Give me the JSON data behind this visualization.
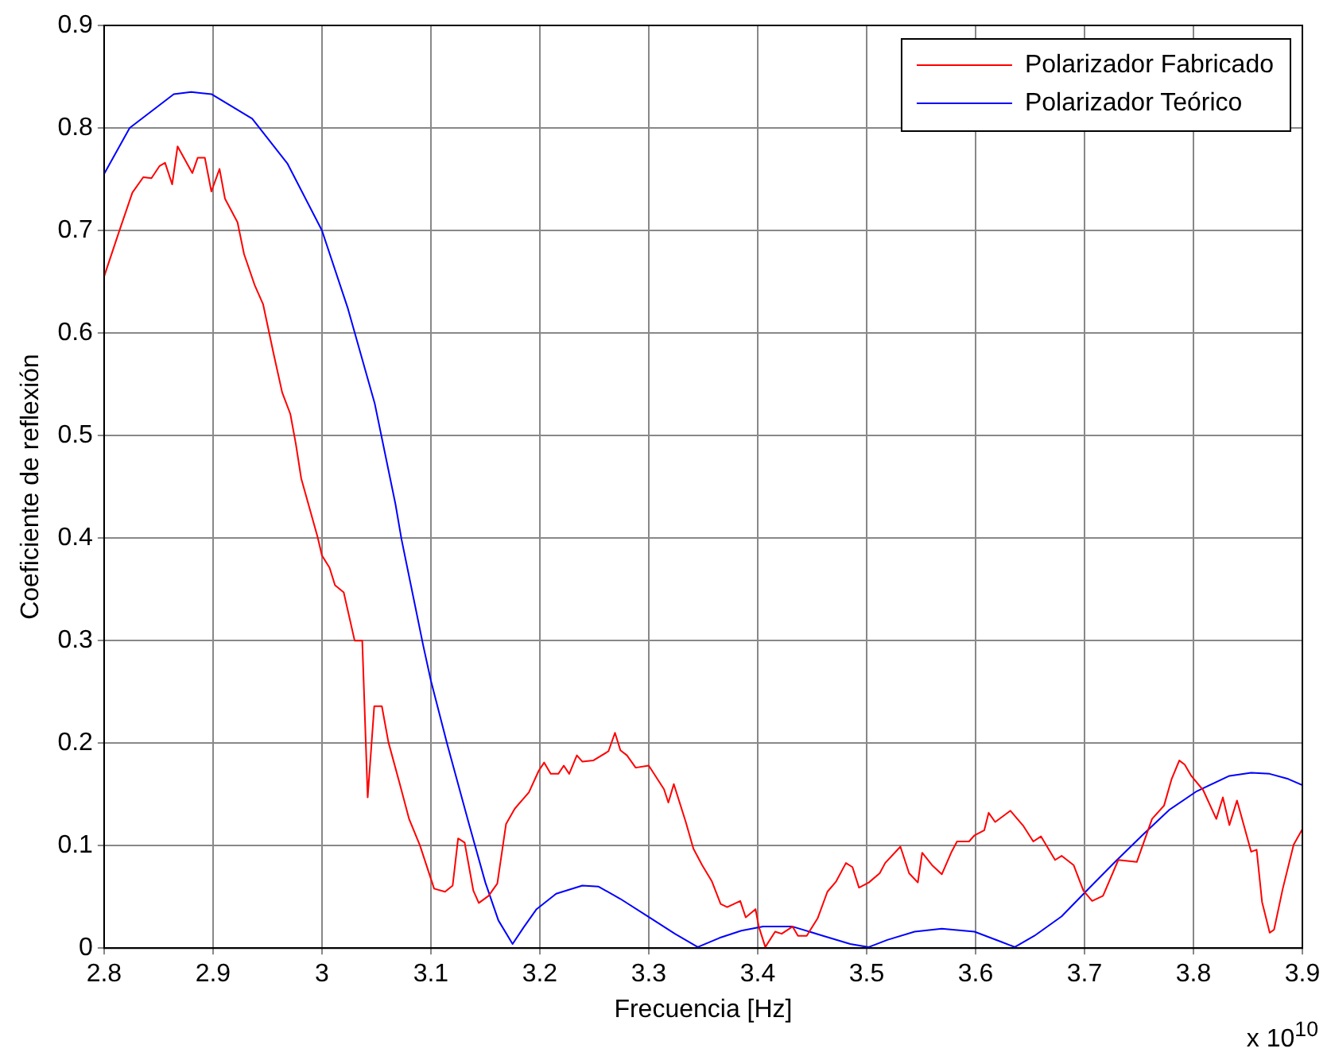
{
  "chart_data": {
    "type": "line",
    "xlabel": "Frecuencia [Hz]",
    "ylabel": "Coeficiente de reflexión",
    "annotations": [
      "x 10$^{10}$"
    ],
    "xlim": [
      2.8,
      3.9
    ],
    "xticks": [
      2.8,
      2.9,
      3,
      3.1,
      3.2,
      3.3,
      3.4,
      3.5,
      3.6,
      3.7,
      3.8,
      3.9
    ],
    "ylim": [
      0,
      0.9
    ],
    "yticks": [
      0,
      0.1,
      0.2,
      0.3,
      0.4,
      0.5,
      0.6,
      0.7,
      0.8,
      0.9
    ],
    "grid": true,
    "legend": "top right",
    "marker": "none",
    "line_style": "solid",
    "series": [
      {
        "name": "Polarizador Fabricado",
        "color": "#ff0000",
        "x": [
          2.8,
          2.8135,
          2.826,
          2.836,
          2.8435,
          2.851,
          2.856,
          2.8625,
          2.8675,
          2.881,
          2.886,
          2.8925,
          2.8985,
          2.906,
          2.911,
          2.9225,
          2.9285,
          2.9385,
          2.946,
          2.956,
          2.9635,
          2.971,
          2.976,
          2.981,
          2.996,
          3.0,
          3.007,
          3.012,
          3.02,
          3.03,
          3.037,
          3.042,
          3.048,
          3.055,
          3.061,
          3.071,
          3.08,
          3.09,
          3.103,
          3.113,
          3.12,
          3.125,
          3.131,
          3.139,
          3.144,
          3.153,
          3.161,
          3.169,
          3.177,
          3.19,
          3.199,
          3.204,
          3.21,
          3.217,
          3.222,
          3.227,
          3.234,
          3.239,
          3.249,
          3.263,
          3.269,
          3.274,
          3.28,
          3.288,
          3.3,
          3.314,
          3.318,
          3.323,
          3.334,
          3.341,
          3.349,
          3.358,
          3.366,
          3.372,
          3.384,
          3.389,
          3.398,
          3.401,
          3.407,
          3.416,
          3.422,
          3.432,
          3.437,
          3.445,
          3.455,
          3.464,
          3.472,
          3.481,
          3.487,
          3.493,
          3.502,
          3.512,
          3.517,
          3.531,
          3.539,
          3.547,
          3.551,
          3.56,
          3.569,
          3.578,
          3.583,
          3.594,
          3.599,
          3.608,
          3.612,
          3.618,
          3.632,
          3.644,
          3.653,
          3.66,
          3.673,
          3.679,
          3.69,
          3.699,
          3.707,
          3.717,
          3.723,
          3.731,
          3.748,
          3.762,
          3.773,
          3.78,
          3.787,
          3.792,
          3.798,
          3.809,
          3.821,
          3.827,
          3.833,
          3.84,
          3.853,
          3.858,
          3.863,
          3.87,
          3.874,
          3.882,
          3.892,
          3.9
        ],
        "values": [
          0.655,
          0.698,
          0.737,
          0.752,
          0.751,
          0.763,
          0.766,
          0.745,
          0.782,
          0.756,
          0.771,
          0.771,
          0.738,
          0.76,
          0.731,
          0.708,
          0.677,
          0.646,
          0.628,
          0.578,
          0.542,
          0.521,
          0.492,
          0.458,
          0.401,
          0.383,
          0.371,
          0.354,
          0.347,
          0.3,
          0.3,
          0.147,
          0.236,
          0.236,
          0.201,
          0.162,
          0.126,
          0.1,
          0.058,
          0.055,
          0.061,
          0.107,
          0.103,
          0.056,
          0.044,
          0.051,
          0.063,
          0.121,
          0.136,
          0.152,
          0.173,
          0.181,
          0.17,
          0.17,
          0.178,
          0.17,
          0.188,
          0.182,
          0.183,
          0.192,
          0.21,
          0.193,
          0.188,
          0.176,
          0.178,
          0.155,
          0.142,
          0.16,
          0.123,
          0.097,
          0.081,
          0.065,
          0.043,
          0.04,
          0.046,
          0.03,
          0.038,
          0.021,
          0.001,
          0.016,
          0.014,
          0.021,
          0.012,
          0.012,
          0.029,
          0.055,
          0.065,
          0.083,
          0.079,
          0.059,
          0.064,
          0.073,
          0.083,
          0.099,
          0.073,
          0.064,
          0.093,
          0.081,
          0.072,
          0.094,
          0.104,
          0.104,
          0.11,
          0.115,
          0.132,
          0.123,
          0.134,
          0.119,
          0.104,
          0.109,
          0.086,
          0.09,
          0.081,
          0.056,
          0.046,
          0.051,
          0.066,
          0.086,
          0.084,
          0.126,
          0.139,
          0.165,
          0.183,
          0.179,
          0.168,
          0.154,
          0.126,
          0.147,
          0.12,
          0.144,
          0.094,
          0.096,
          0.045,
          0.015,
          0.018,
          0.058,
          0.101,
          0.116
        ]
      },
      {
        "name": "Polarizador Teórico",
        "color": "#0000ff",
        "x": [
          2.8,
          2.8235,
          2.864,
          2.88,
          2.8985,
          2.936,
          2.9685,
          3.0,
          3.0235,
          3.0485,
          3.0675,
          3.073,
          3.093,
          3.1,
          3.115,
          3.135,
          3.15,
          3.162,
          3.175,
          3.185,
          3.197,
          3.215,
          3.239,
          3.254,
          3.274,
          3.299,
          3.324,
          3.345,
          3.365,
          3.385,
          3.405,
          3.432,
          3.46,
          3.485,
          3.502,
          3.519,
          3.544,
          3.569,
          3.599,
          3.624,
          3.636,
          3.654,
          3.679,
          3.701,
          3.728,
          3.753,
          3.778,
          3.803,
          3.833,
          3.853,
          3.87,
          3.887,
          3.9
        ],
        "values": [
          0.755,
          0.8,
          0.833,
          0.835,
          0.833,
          0.809,
          0.765,
          0.7,
          0.625,
          0.531,
          0.433,
          0.399,
          0.295,
          0.261,
          0.199,
          0.121,
          0.064,
          0.027,
          0.004,
          0.02,
          0.038,
          0.053,
          0.061,
          0.06,
          0.048,
          0.031,
          0.014,
          0.001,
          0.01,
          0.017,
          0.021,
          0.021,
          0.012,
          0.004,
          0.001,
          0.008,
          0.016,
          0.019,
          0.016,
          0.006,
          0.001,
          0.012,
          0.031,
          0.055,
          0.084,
          0.11,
          0.135,
          0.153,
          0.168,
          0.171,
          0.17,
          0.165,
          0.159
        ]
      }
    ]
  }
}
